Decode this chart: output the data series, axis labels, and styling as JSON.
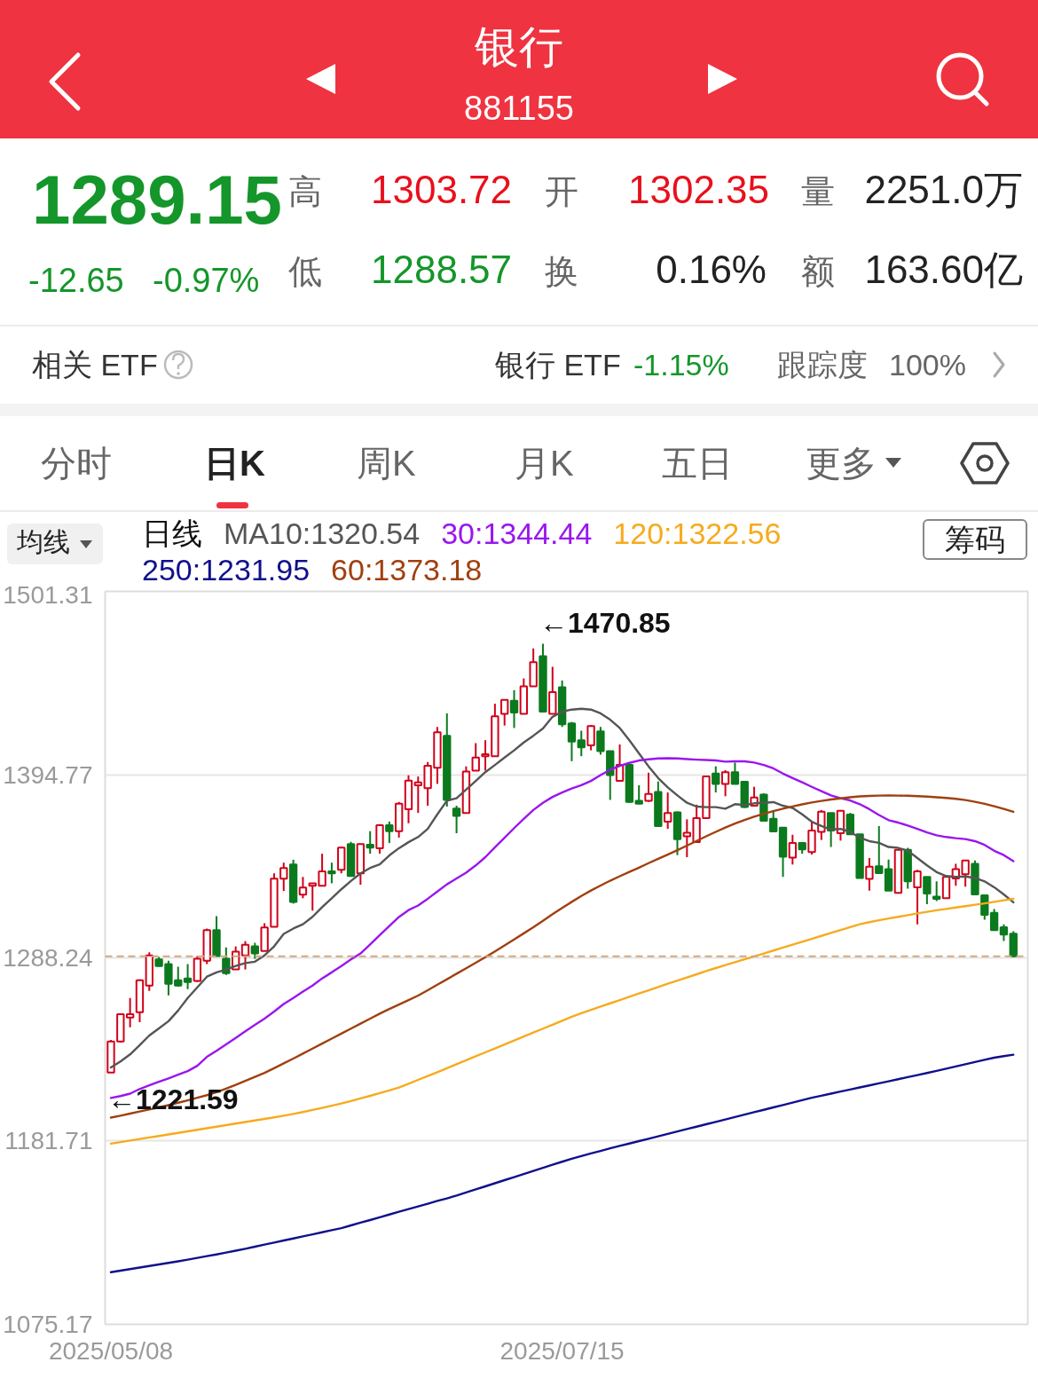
{
  "chart_data": {
    "type": "candlestick",
    "title": "银行",
    "subtitle": "881155",
    "categories": [
      "2025/05/08",
      null,
      null,
      null,
      null,
      null,
      null,
      null,
      null,
      null,
      null,
      null,
      null,
      null,
      null,
      null,
      null,
      null,
      null,
      null,
      null,
      null,
      null,
      null,
      null,
      null,
      null,
      null,
      null,
      null,
      null,
      null,
      null,
      null,
      null,
      null,
      null,
      null,
      null,
      null,
      null,
      null,
      null,
      null,
      null,
      null,
      null,
      "2025/07/15",
      null,
      null,
      null,
      null,
      null,
      null,
      null,
      null,
      null,
      null,
      null,
      null,
      null,
      null,
      null,
      null,
      null,
      null,
      null,
      null,
      null,
      null,
      null,
      null,
      null,
      null,
      null,
      null,
      null,
      null,
      null,
      null,
      null,
      null,
      null,
      null,
      null,
      null,
      null,
      null,
      null,
      null,
      null,
      null,
      null,
      null,
      null
    ],
    "ohlc": [
      [
        1221.59,
        1240.5,
        1221.59,
        1239.6
      ],
      [
        1239.6,
        1256.0,
        1239.0,
        1255.5
      ],
      [
        1253.5,
        1264.9,
        1247.9,
        1255.5
      ],
      [
        1256.6,
        1275.7,
        1250.8,
        1275.2
      ],
      [
        1272.1,
        1291.4,
        1269.0,
        1289.7
      ],
      [
        1287.3,
        1288.7,
        1283.1,
        1283.5
      ],
      [
        1284.6,
        1286.6,
        1266.5,
        1273.2
      ],
      [
        1275.2,
        1283.1,
        1271.5,
        1272.1
      ],
      [
        1276.3,
        1284.6,
        1270.0,
        1274.2
      ],
      [
        1274.8,
        1289.3,
        1274.2,
        1287.7
      ],
      [
        1286.6,
        1305.3,
        1284.6,
        1304.3
      ],
      [
        1304.3,
        1312.5,
        1289.3,
        1289.3
      ],
      [
        1287.7,
        1294.3,
        1278.3,
        1279.4
      ],
      [
        1281.5,
        1294.9,
        1281.5,
        1291.8
      ],
      [
        1289.7,
        1298.0,
        1281.5,
        1295.9
      ],
      [
        1294.9,
        1297.0,
        1287.7,
        1290.8
      ],
      [
        1292.2,
        1308.4,
        1292.2,
        1305.9
      ],
      [
        1306.3,
        1337.4,
        1306.3,
        1334.3
      ],
      [
        1334.3,
        1343.6,
        1327.1,
        1340.5
      ],
      [
        1342.6,
        1345.3,
        1319.8,
        1320.8
      ],
      [
        1325.0,
        1335.3,
        1322.9,
        1329.1
      ],
      [
        1330.2,
        1331.6,
        1315.7,
        1331.6
      ],
      [
        1330.2,
        1348.8,
        1330.2,
        1338.5
      ],
      [
        1338.5,
        1343.6,
        1331.6,
        1337.4
      ],
      [
        1339.5,
        1352.9,
        1337.4,
        1352.3
      ],
      [
        1354.4,
        1355.7,
        1335.8,
        1335.8
      ],
      [
        1337.4,
        1354.4,
        1330.8,
        1354.4
      ],
      [
        1354.0,
        1361.9,
        1348.8,
        1352.3
      ],
      [
        1351.9,
        1366.0,
        1348.8,
        1365.4
      ],
      [
        1365.4,
        1367.5,
        1355.0,
        1361.9
      ],
      [
        1361.9,
        1378.9,
        1358.2,
        1377.9
      ],
      [
        1374.7,
        1394.4,
        1366.5,
        1391.3
      ],
      [
        1388.6,
        1393.7,
        1372.5,
        1390.3
      ],
      [
        1386.9,
        1402.1,
        1376.7,
        1399.9
      ],
      [
        1398.8,
        1422.5,
        1389.4,
        1419.4
      ],
      [
        1417.4,
        1430.4,
        1376.2,
        1380.1
      ],
      [
        1375.0,
        1376.7,
        1360.7,
        1370.8
      ],
      [
        1372.5,
        1399.6,
        1372.5,
        1396.6
      ],
      [
        1397.1,
        1413.1,
        1397.1,
        1404.7
      ],
      [
        1405.5,
        1414.8,
        1397.1,
        1406.7
      ],
      [
        1405.5,
        1436.0,
        1405.5,
        1428.7
      ],
      [
        1430.1,
        1438.2,
        1423.3,
        1438.2
      ],
      [
        1437.7,
        1443.9,
        1421.9,
        1430.9
      ],
      [
        1430.1,
        1450.7,
        1430.1,
        1446.1
      ],
      [
        1446.1,
        1468.2,
        1446.1,
        1460.2
      ],
      [
        1463.6,
        1470.85,
        1431.4,
        1431.4
      ],
      [
        1430.1,
        1457.5,
        1430.1,
        1442.8
      ],
      [
        1445.6,
        1449.5,
        1422.5,
        1424.1
      ],
      [
        1424.6,
        1425.4,
        1402.6,
        1414.0
      ],
      [
        1414.8,
        1420.3,
        1405.5,
        1410.6
      ],
      [
        1411.8,
        1423.6,
        1408.9,
        1423.0
      ],
      [
        1419.9,
        1422.5,
        1406.4,
        1408.4
      ],
      [
        1408.4,
        1408.4,
        1380.1,
        1394.5
      ],
      [
        1391.1,
        1412.3,
        1391.1,
        1400.4
      ],
      [
        1400.4,
        1401.3,
        1378.4,
        1378.9
      ],
      [
        1379.6,
        1388.6,
        1377.6,
        1377.9
      ],
      [
        1379.6,
        1395.9,
        1378.9,
        1383.5
      ],
      [
        1384.7,
        1390.8,
        1364.9,
        1364.9
      ],
      [
        1367.4,
        1384.4,
        1363.2,
        1372.5
      ],
      [
        1372.8,
        1373.4,
        1348.0,
        1357.3
      ],
      [
        1358.9,
        1368.8,
        1346.8,
        1361.0
      ],
      [
        1355.6,
        1377.3,
        1355.6,
        1369.5
      ],
      [
        1369.5,
        1394.2,
        1369.1,
        1393.7
      ],
      [
        1395.4,
        1399.6,
        1384.4,
        1389.4
      ],
      [
        1389.4,
        1397.4,
        1382.2,
        1396.2
      ],
      [
        1396.2,
        1401.8,
        1389.4,
        1389.4
      ],
      [
        1390.6,
        1391.1,
        1375.4,
        1375.9
      ],
      [
        1376.7,
        1387.7,
        1376.7,
        1381.5
      ],
      [
        1383.2,
        1383.9,
        1367.9,
        1367.9
      ],
      [
        1369.1,
        1374.2,
        1361.8,
        1361.8
      ],
      [
        1364.0,
        1364.0,
        1335.3,
        1347.1
      ],
      [
        1346.6,
        1359.8,
        1342.5,
        1355.1
      ],
      [
        1355.1,
        1355.6,
        1348.8,
        1351.3
      ],
      [
        1349.7,
        1367.4,
        1348.3,
        1362.3
      ],
      [
        1361.5,
        1374.2,
        1356.8,
        1373.3
      ],
      [
        1372.5,
        1372.5,
        1352.7,
        1362.3
      ],
      [
        1360.7,
        1374.2,
        1356.4,
        1373.7
      ],
      [
        1371.6,
        1372.5,
        1360.1,
        1360.1
      ],
      [
        1360.1,
        1360.1,
        1334.7,
        1334.7
      ],
      [
        1334.1,
        1346.3,
        1327.3,
        1341.2
      ],
      [
        1341.5,
        1364.9,
        1337.5,
        1337.5
      ],
      [
        1339.8,
        1345.4,
        1327.3,
        1327.3
      ],
      [
        1326.0,
        1351.4,
        1325.6,
        1351.0
      ],
      [
        1351.0,
        1352.2,
        1328.5,
        1332.7
      ],
      [
        1329.3,
        1339.5,
        1307.7,
        1338.6
      ],
      [
        1335.3,
        1335.3,
        1319.5,
        1325.6
      ],
      [
        1323.9,
        1332.7,
        1321.2,
        1322.6
      ],
      [
        1322.9,
        1336.1,
        1322.9,
        1335.3
      ],
      [
        1334.4,
        1342.9,
        1330.2,
        1339.8
      ],
      [
        1336.9,
        1344.9,
        1329.7,
        1344.9
      ],
      [
        1342.9,
        1344.9,
        1325.1,
        1325.1
      ],
      [
        1324.6,
        1324.6,
        1310.4,
        1313.3
      ],
      [
        1314.4,
        1316.6,
        1304.3,
        1304.3
      ],
      [
        1306.0,
        1307.7,
        1298.0,
        1301.8
      ],
      [
        1302.35,
        1303.72,
        1288.57,
        1289.15
      ]
    ],
    "colors": [
      "#d0021b",
      "#d0021b",
      "#d0021b",
      "#d0021b",
      "#d0021b",
      "#0b7a1e",
      "#0b7a1e",
      "#0b7a1e",
      "#0b7a1e",
      "#d0021b",
      "#d0021b",
      "#0b7a1e",
      "#0b7a1e",
      "#d0021b",
      "#d0021b",
      "#0b7a1e",
      "#d0021b",
      "#d0021b",
      "#d0021b",
      "#0b7a1e",
      "#d0021b",
      "#d0021b",
      "#d0021b",
      "#0b7a1e",
      "#d0021b",
      "#0b7a1e",
      "#d0021b",
      "#0b7a1e",
      "#d0021b",
      "#0b7a1e",
      "#d0021b",
      "#d0021b",
      "#d0021b",
      "#d0021b",
      "#d0021b",
      "#0b7a1e",
      "#0b7a1e",
      "#d0021b",
      "#d0021b",
      "#d0021b",
      "#d0021b",
      "#d0021b",
      "#0b7a1e",
      "#d0021b",
      "#d0021b",
      "#0b7a1e",
      "#d0021b",
      "#0b7a1e",
      "#0b7a1e",
      "#0b7a1e",
      "#d0021b",
      "#0b7a1e",
      "#0b7a1e",
      "#d0021b",
      "#0b7a1e",
      "#0b7a1e",
      "#d0021b",
      "#0b7a1e",
      "#d0021b",
      "#0b7a1e",
      "#d0021b",
      "#d0021b",
      "#d0021b",
      "#0b7a1e",
      "#d0021b",
      "#0b7a1e",
      "#0b7a1e",
      "#d0021b",
      "#0b7a1e",
      "#0b7a1e",
      "#0b7a1e",
      "#d0021b",
      "#0b7a1e",
      "#d0021b",
      "#d0021b",
      "#0b7a1e",
      "#d0021b",
      "#0b7a1e",
      "#0b7a1e",
      "#d0021b",
      "#0b7a1e",
      "#0b7a1e",
      "#d0021b",
      "#0b7a1e",
      "#d0021b",
      "#0b7a1e",
      "#0b7a1e",
      "#d0021b",
      "#d0021b",
      "#d0021b",
      "#0b7a1e",
      "#0b7a1e",
      "#0b7a1e",
      "#0b7a1e",
      "#0b7a1e"
    ],
    "series": [
      {
        "name": "MA10:1320.54",
        "type": "line",
        "color": "#555555",
        "values": [
          1224.5,
          1228.0,
          1232.1,
          1237.5,
          1243.1,
          1247.2,
          1251.4,
          1257.6,
          1264.9,
          1271.1,
          1277.3,
          1279.8,
          1281.5,
          1283.5,
          1285.2,
          1286.0,
          1289.7,
          1294.9,
          1302.2,
          1305.3,
          1307.8,
          1312.1,
          1317.7,
          1322.9,
          1328.1,
          1332.9,
          1337.4,
          1340.5,
          1342.6,
          1347.8,
          1352.0,
          1355.5,
          1358.5,
          1363.2,
          1371.7,
          1379.6,
          1381.0,
          1386.1,
          1391.1,
          1396.2,
          1400.4,
          1404.7,
          1408.9,
          1413.5,
          1417.4,
          1421.6,
          1428.4,
          1431.4,
          1432.6,
          1433.1,
          1432.6,
          1430.4,
          1426.7,
          1421.9,
          1414.8,
          1407.2,
          1399.6,
          1392.8,
          1387.4,
          1382.7,
          1378.4,
          1376.2,
          1375.9,
          1375.9,
          1375.0,
          1377.6,
          1377.1,
          1378.1,
          1378.4,
          1378.8,
          1376.7,
          1375.4,
          1371.7,
          1367.4,
          1364.9,
          1362.9,
          1363.2,
          1361.5,
          1358.1,
          1356.1,
          1355.1,
          1352.7,
          1352.2,
          1350.5,
          1346.3,
          1342.0,
          1338.1,
          1335.8,
          1335.3,
          1335.6,
          1334.7,
          1332.7,
          1329.3,
          1325.1,
          1320.54
        ]
      },
      {
        "name": "30:1344.44",
        "type": "line",
        "color": "#9a16ee",
        "values": [
          1206.8,
          1207.9,
          1209.3,
          1212.0,
          1214.1,
          1216.2,
          1218.2,
          1220.3,
          1222.4,
          1225.5,
          1230.7,
          1234.2,
          1237.9,
          1241.7,
          1245.6,
          1249.3,
          1252.9,
          1257.0,
          1261.4,
          1264.9,
          1268.6,
          1272.1,
          1276.3,
          1279.8,
          1283.5,
          1287.3,
          1290.8,
          1296.0,
          1301.5,
          1306.8,
          1312.0,
          1316.0,
          1318.7,
          1322.6,
          1326.8,
          1331.0,
          1334.4,
          1337.8,
          1342.0,
          1346.8,
          1352.5,
          1358.1,
          1363.7,
          1369.1,
          1374.2,
          1378.4,
          1381.8,
          1384.4,
          1386.7,
          1388.6,
          1391.1,
          1394.5,
          1397.6,
          1399.9,
          1401.6,
          1403.0,
          1403.7,
          1404.2,
          1404.3,
          1404.2,
          1403.8,
          1403.5,
          1403.3,
          1403.0,
          1402.3,
          1402.5,
          1402.5,
          1401.8,
          1400.4,
          1398.4,
          1395.4,
          1392.8,
          1390.3,
          1387.7,
          1385.2,
          1382.7,
          1381.0,
          1379.8,
          1377.6,
          1374.7,
          1371.3,
          1368.3,
          1366.9,
          1365.2,
          1363.2,
          1361.2,
          1359.5,
          1358.5,
          1357.8,
          1357.3,
          1356.1,
          1353.9,
          1350.5,
          1348.0,
          1344.44
        ]
      },
      {
        "name": "120:1322.56",
        "type": "line",
        "color": "#f6ab1e",
        "values": [
          1180.2,
          1181.1,
          1182.0,
          1182.9,
          1183.8,
          1184.7,
          1185.6,
          1186.5,
          1187.4,
          1188.3,
          1189.2,
          1190.1,
          1191.0,
          1191.9,
          1192.8,
          1193.7,
          1194.6,
          1195.5,
          1196.5,
          1197.5,
          1198.6,
          1199.8,
          1201.0,
          1202.3,
          1203.6,
          1205.0,
          1206.5,
          1208.0,
          1209.6,
          1211.2,
          1212.9,
          1215.1,
          1217.3,
          1219.5,
          1221.8,
          1224.1,
          1226.4,
          1228.7,
          1231.0,
          1233.3,
          1235.6,
          1237.9,
          1240.2,
          1242.5,
          1244.8,
          1247.1,
          1249.4,
          1251.7,
          1254.0,
          1256.0,
          1258.0,
          1259.9,
          1261.8,
          1263.7,
          1265.6,
          1267.5,
          1269.4,
          1271.3,
          1273.2,
          1275.0,
          1276.8,
          1278.7,
          1280.6,
          1282.3,
          1284.0,
          1285.7,
          1287.4,
          1289.1,
          1290.8,
          1292.5,
          1294.2,
          1295.9,
          1297.6,
          1299.3,
          1301.0,
          1302.7,
          1304.4,
          1306.1,
          1307.8,
          1309.0,
          1310.1,
          1311.1,
          1312.1,
          1313.1,
          1314.1,
          1315.0,
          1315.9,
          1316.7,
          1317.5,
          1318.3,
          1319.1,
          1319.9,
          1320.8,
          1321.7,
          1322.56
        ]
      },
      {
        "name": "250:1231.95",
        "type": "line",
        "color": "#10108c",
        "values": [
          1105.5,
          1106.4,
          1107.3,
          1108.2,
          1109.1,
          1110.0,
          1110.9,
          1111.8,
          1112.8,
          1113.8,
          1114.8,
          1115.8,
          1116.9,
          1118.0,
          1119.1,
          1120.3,
          1121.5,
          1122.7,
          1123.9,
          1125.1,
          1126.3,
          1127.5,
          1128.7,
          1129.9,
          1131.1,
          1132.7,
          1134.3,
          1135.8,
          1137.4,
          1139.0,
          1140.6,
          1142.2,
          1143.7,
          1145.3,
          1146.9,
          1148.4,
          1150.0,
          1151.8,
          1153.6,
          1155.4,
          1157.2,
          1159.0,
          1160.8,
          1162.6,
          1164.4,
          1166.2,
          1168.0,
          1169.7,
          1171.4,
          1173.0,
          1174.5,
          1176.0,
          1177.5,
          1178.9,
          1180.3,
          1181.7,
          1183.1,
          1184.5,
          1185.9,
          1187.3,
          1188.7,
          1190.1,
          1191.5,
          1192.9,
          1194.3,
          1195.7,
          1197.1,
          1198.5,
          1199.9,
          1201.3,
          1202.7,
          1204.1,
          1205.5,
          1206.9,
          1208.1,
          1209.3,
          1210.5,
          1211.7,
          1212.9,
          1214.1,
          1215.3,
          1216.5,
          1217.7,
          1218.9,
          1220.1,
          1221.3,
          1222.5,
          1223.8,
          1225.1,
          1226.4,
          1227.7,
          1229.0,
          1230.2,
          1231.1,
          1231.95
        ]
      },
      {
        "name": "60:1373.18",
        "type": "line",
        "color": "#a0400f",
        "values": [
          1195.4,
          1196.5,
          1197.7,
          1198.9,
          1200.1,
          1201.3,
          1202.6,
          1204.0,
          1205.4,
          1206.9,
          1208.4,
          1210.1,
          1212.2,
          1214.4,
          1216.7,
          1219.0,
          1221.4,
          1224.1,
          1226.9,
          1229.7,
          1232.6,
          1235.5,
          1238.4,
          1241.3,
          1244.2,
          1247.1,
          1250.0,
          1252.9,
          1255.8,
          1258.5,
          1261.1,
          1263.7,
          1266.3,
          1269.4,
          1272.6,
          1275.8,
          1279.0,
          1282.2,
          1285.4,
          1288.6,
          1292.0,
          1295.5,
          1299.0,
          1302.5,
          1306.0,
          1309.8,
          1313.6,
          1317.3,
          1320.8,
          1324.2,
          1327.4,
          1330.3,
          1333.1,
          1335.7,
          1338.2,
          1340.7,
          1343.3,
          1345.8,
          1348.3,
          1350.9,
          1353.5,
          1356.2,
          1358.9,
          1361.5,
          1364.0,
          1366.3,
          1368.4,
          1370.3,
          1372.0,
          1373.6,
          1375.0,
          1376.3,
          1377.5,
          1378.6,
          1379.5,
          1380.3,
          1381.0,
          1381.6,
          1382.1,
          1382.4,
          1382.6,
          1382.7,
          1382.6,
          1382.5,
          1382.3,
          1382.0,
          1381.6,
          1381.2,
          1380.7,
          1380.0,
          1379.0,
          1377.8,
          1376.4,
          1374.8,
          1373.18
        ]
      }
    ],
    "legend_title": "日线",
    "legend": "top left",
    "ylim": [
      1075.17,
      1501.31
    ],
    "yticks": [
      1075.17,
      1181.71,
      1288.24,
      1394.77,
      1501.31
    ],
    "grid": "y",
    "ref_lines": [
      {
        "axis": "y",
        "value": 1289.15,
        "color": "#d4a77c",
        "line_style": "dashed"
      }
    ],
    "annotations": [
      "1289.15",
      "-12.65",
      "-0.97%",
      "高",
      "1303.72",
      "开",
      "1302.35",
      "量",
      "2251.0万",
      "低",
      "1288.57",
      "换",
      "0.16%",
      "额",
      "163.60亿",
      "相关 ETF",
      "银行 ETF",
      "-1.15%",
      "跟踪度",
      "100%",
      "分时",
      "日K",
      "周K",
      "月K",
      "五日",
      "更多",
      "均线",
      "筹码",
      "←1470.85",
      "←1221.59"
    ]
  }
}
